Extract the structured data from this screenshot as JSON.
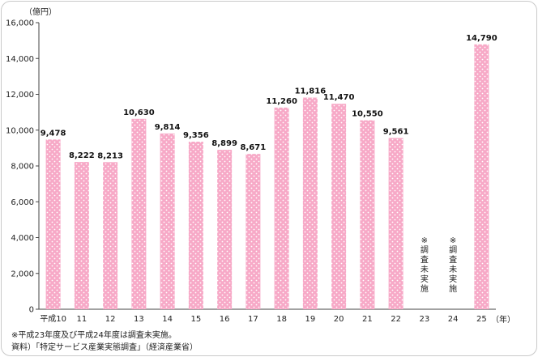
{
  "chart_data": {
    "type": "bar",
    "unit_label": "（億円）",
    "x_unit_label": "（年）",
    "categories": [
      "平成10",
      "11",
      "12",
      "13",
      "14",
      "15",
      "16",
      "17",
      "18",
      "19",
      "20",
      "21",
      "22",
      "23",
      "24",
      "25"
    ],
    "values": [
      9478,
      8222,
      8213,
      10630,
      9814,
      9356,
      8899,
      8671,
      11260,
      11816,
      11470,
      10550,
      9561,
      null,
      null,
      14790
    ],
    "data_labels": [
      "9,478",
      "8,222",
      "8,213",
      "10,630",
      "9,814",
      "9,356",
      "8,899",
      "8,671",
      "11,260",
      "11,816",
      "11,470",
      "10,550",
      "9,561",
      "",
      "",
      "14,790"
    ],
    "no_survey_label": [
      "※",
      "調",
      "査",
      "未",
      "実",
      "施"
    ],
    "ylim": [
      0,
      16000
    ],
    "yticks": [
      0,
      2000,
      4000,
      6000,
      8000,
      10000,
      12000,
      14000,
      16000
    ],
    "ytick_labels": [
      "0",
      "2,000",
      "4,000",
      "6,000",
      "8,000",
      "10,000",
      "12,000",
      "14,000",
      "16,000"
    ],
    "bar_color": "#f7a9c7",
    "dot_color": "#ffffff",
    "grid": false
  },
  "notes": {
    "footnote": "※平成23年度及び平成24年度は調査未実施。",
    "source": "資料）「特定サービス産業実態調査」（経済産業省）"
  }
}
